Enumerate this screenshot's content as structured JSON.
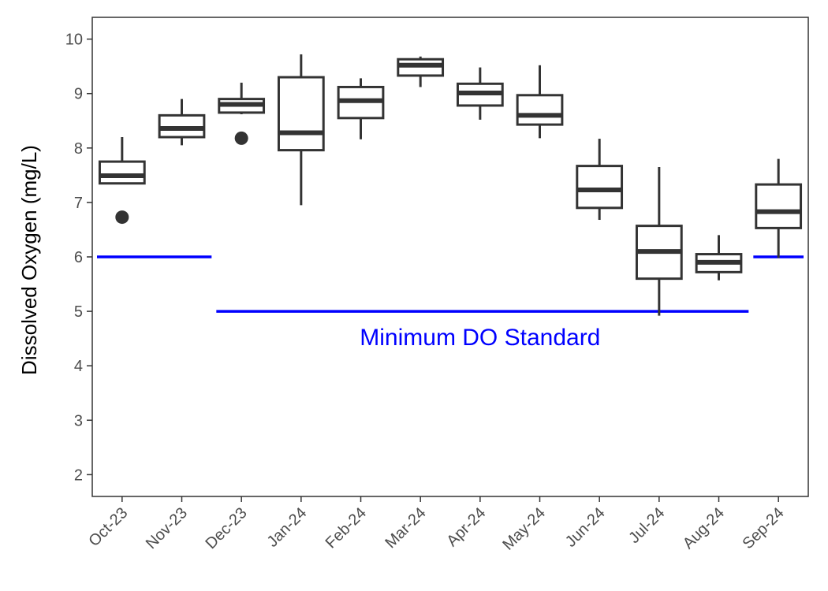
{
  "chart_data": {
    "type": "box",
    "ylabel": "Dissolved Oxygen (mg/L)",
    "xlabel": "",
    "ylim": [
      1.6,
      10.4
    ],
    "yticks": [
      2,
      3,
      4,
      5,
      6,
      7,
      8,
      9,
      10
    ],
    "grid": false,
    "categories": [
      "Oct-23",
      "Nov-23",
      "Dec-23",
      "Jan-24",
      "Feb-24",
      "Mar-24",
      "Apr-24",
      "May-24",
      "Jun-24",
      "Jul-24",
      "Aug-24",
      "Sep-24"
    ],
    "boxes": [
      {
        "category": "Oct-23",
        "whisker_low": 7.35,
        "q1": 7.35,
        "median": 7.49,
        "q3": 7.75,
        "whisker_high": 8.2,
        "outliers": [
          6.73
        ]
      },
      {
        "category": "Nov-23",
        "whisker_low": 8.05,
        "q1": 8.2,
        "median": 8.36,
        "q3": 8.6,
        "whisker_high": 8.9,
        "outliers": []
      },
      {
        "category": "Dec-23",
        "whisker_low": 8.62,
        "q1": 8.65,
        "median": 8.8,
        "q3": 8.9,
        "whisker_high": 9.2,
        "outliers": [
          8.18
        ]
      },
      {
        "category": "Jan-24",
        "whisker_low": 6.95,
        "q1": 7.96,
        "median": 8.28,
        "q3": 9.3,
        "whisker_high": 9.72,
        "outliers": []
      },
      {
        "category": "Feb-24",
        "whisker_low": 8.16,
        "q1": 8.55,
        "median": 8.87,
        "q3": 9.12,
        "whisker_high": 9.28,
        "outliers": []
      },
      {
        "category": "Mar-24",
        "whisker_low": 9.12,
        "q1": 9.33,
        "median": 9.52,
        "q3": 9.63,
        "whisker_high": 9.68,
        "outliers": []
      },
      {
        "category": "Apr-24",
        "whisker_low": 8.52,
        "q1": 8.78,
        "median": 9.01,
        "q3": 9.18,
        "whisker_high": 9.48,
        "outliers": []
      },
      {
        "category": "May-24",
        "whisker_low": 8.18,
        "q1": 8.43,
        "median": 8.6,
        "q3": 8.97,
        "whisker_high": 9.52,
        "outliers": []
      },
      {
        "category": "Jun-24",
        "whisker_low": 6.68,
        "q1": 6.9,
        "median": 7.23,
        "q3": 7.67,
        "whisker_high": 8.17,
        "outliers": []
      },
      {
        "category": "Jul-24",
        "whisker_low": 4.92,
        "q1": 5.6,
        "median": 6.1,
        "q3": 6.57,
        "whisker_high": 7.65,
        "outliers": []
      },
      {
        "category": "Aug-24",
        "whisker_low": 5.57,
        "q1": 5.72,
        "median": 5.9,
        "q3": 6.05,
        "whisker_high": 6.4,
        "outliers": []
      },
      {
        "category": "Sep-24",
        "whisker_low": 5.98,
        "q1": 6.53,
        "median": 6.83,
        "q3": 7.33,
        "whisker_high": 7.8,
        "outliers": []
      }
    ],
    "standard_lines": [
      {
        "from": "Oct-23",
        "to": "Nov-23",
        "value": 6
      },
      {
        "from": "Dec-23",
        "to": "Aug-24",
        "value": 5
      },
      {
        "from": "Sep-24",
        "to": "Sep-24",
        "value": 6
      }
    ],
    "annotation": {
      "text": "Minimum DO Standard",
      "color": "#0000ff"
    },
    "colors": {
      "box": "#333333",
      "standard": "#0000ff",
      "axis_text": "#4d4d4d"
    }
  }
}
